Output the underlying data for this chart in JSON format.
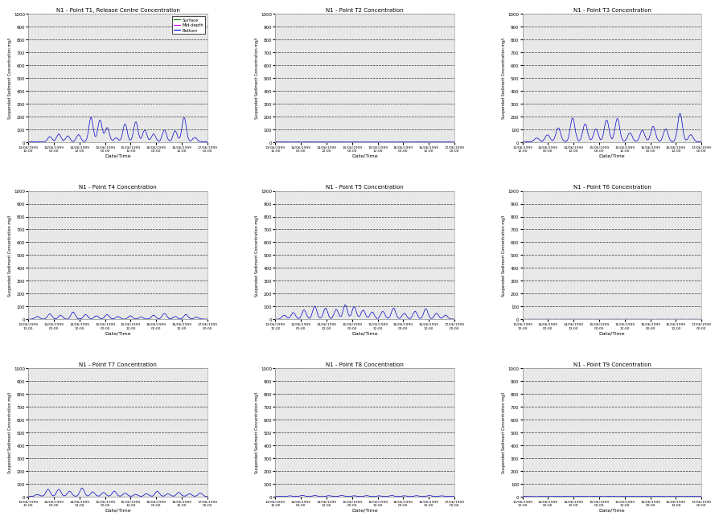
{
  "titles": [
    "N1 - Point T1, Release Centre Concentration",
    "N1 - Point T2 Concentration",
    "N1 - Point T3 Concentration",
    "N1 - Point T4 Concentration",
    "N1 - Point T5 Concentration",
    "N1 - Point T6 Concentration",
    "N1 - Point T7 Concentration",
    "N1 - Point T8 Concentration",
    "N1 - Point T9 Concentration"
  ],
  "ylabel": "Suspended Sediment Concentration mg/l",
  "xlabel": "Date/Time",
  "ylim": [
    0,
    1000
  ],
  "yticks": [
    0,
    100,
    200,
    300,
    400,
    500,
    600,
    700,
    800,
    900,
    1000
  ],
  "line_color_surface": "#008000",
  "line_color_mid": "#cc00cc",
  "line_color_bottom": "#0000cc",
  "legend_labels": [
    "Surface",
    "Mid-depth",
    "Bottom"
  ],
  "background_color": "#ffffff",
  "plot_bg_color": "#e8e8e8",
  "n_points": 400,
  "xtick_labels": [
    "13/06/1999\n12:00",
    "14/06/1999\n00:00",
    "14/06/1999\n12:00",
    "15/06/1999\n00:00",
    "15/06/1999\n12:00",
    "16/06/1999\n00:00",
    "16/06/1999\n12:00",
    "17/06/1999\n00:00"
  ],
  "xtick_labels_T3": [
    "13/06/1999\n12:00",
    "14/06/1999\n00:00",
    "14/06/1999\n12:00",
    "15/06/1999\n00:00",
    "15/06/1999\n12:00",
    "16/06/1999\n00:00",
    "16/06/1999\n12:00",
    "17/06/1999\n00:00"
  ],
  "xtick_labels_T6": [
    "14/06/1999\n12:00",
    "15/06/1999\n00:00",
    "15/06/1999\n12:00",
    "16/06/1999\n00:00",
    "16/06/1999\n12:00",
    "16/06/1999\n12:00",
    "17/06/1999\n00:00",
    "17/06/1999\n00:00"
  ],
  "xtick_labels_T9": [
    "13/06/1999\n12:00",
    "14/06/1999\n00:00",
    "15/06/1999\n00:00",
    "15/06/1999\n12:00",
    "16/06/1999\n00:00",
    "16/06/1999\n12:00",
    "17/06/1999\n00:00",
    "17/06/1999\n00:00"
  ]
}
